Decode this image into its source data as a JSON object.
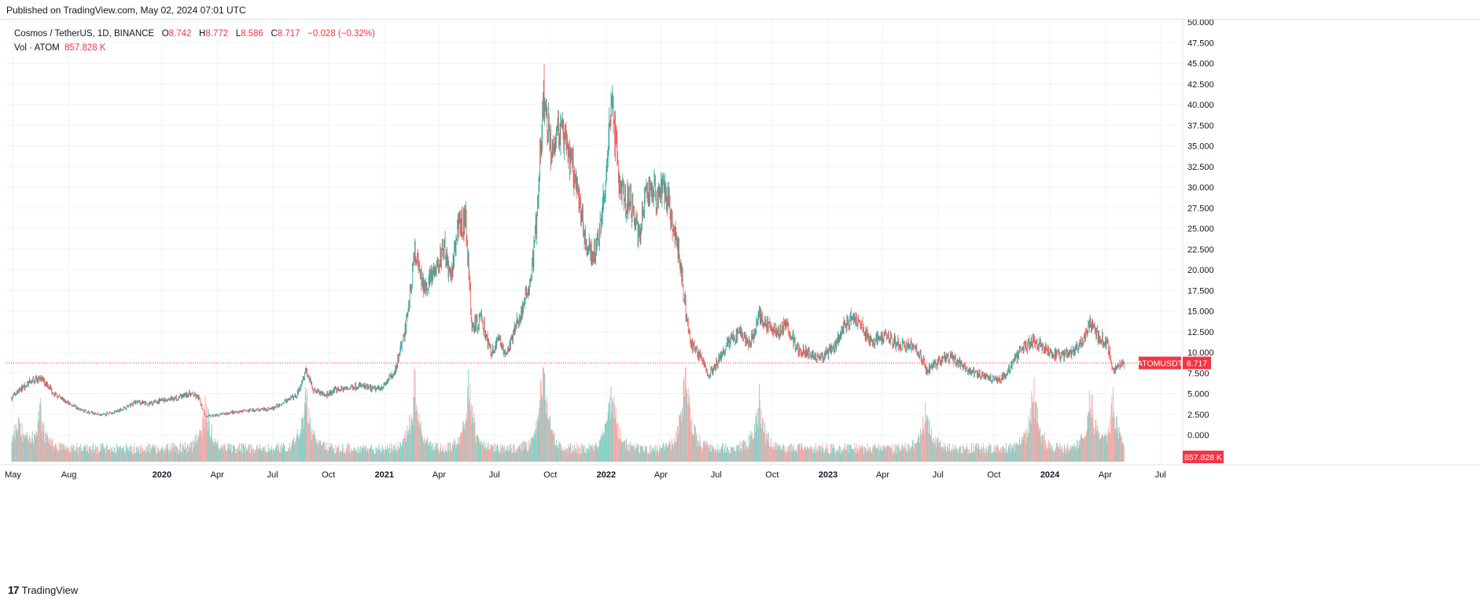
{
  "header": {
    "published": "Published on TradingView.com, May 02, 2024 07:01 UTC"
  },
  "legend": {
    "symbol": "Cosmos / TetherUS, 1D, BINANCE",
    "o_label": "O",
    "o": "8.742",
    "h_label": "H",
    "h": "8.772",
    "l_label": "L",
    "l": "8.586",
    "c_label": "C",
    "c": "8.717",
    "change": "−0.028 (−0.32%)",
    "vol_label": "Vol · ATOM",
    "vol": "857.828 K"
  },
  "price_tag": {
    "symbol": "ATOMUSDT",
    "value": "8.717"
  },
  "volume_tag": "857.828 K",
  "footer": {
    "brand": "TradingView",
    "mark": "17"
  },
  "colors": {
    "up": "#26a69a",
    "down": "#ef5350",
    "up_vol": "#7fcfc5",
    "down_vol": "#f7a8a6",
    "price_line": "#f23645"
  },
  "chart_data": {
    "type": "candlestick",
    "title": "Cosmos / TetherUS, 1D, BINANCE",
    "y_ticks": [
      "50.000",
      "47.500",
      "45.000",
      "42.500",
      "40.000",
      "37.500",
      "35.000",
      "32.500",
      "30.000",
      "27.500",
      "25.000",
      "22.500",
      "20.000",
      "17.500",
      "15.000",
      "12.500",
      "10.000",
      "7.500",
      "5.000",
      "2.500",
      "0.000"
    ],
    "ylim": [
      0,
      50
    ],
    "x_ticks": [
      "May",
      "Aug",
      "2020",
      "Apr",
      "Jul",
      "Oct",
      "2021",
      "Apr",
      "Jul",
      "Oct",
      "2022",
      "Apr",
      "Jul",
      "Oct",
      "2023",
      "Apr",
      "Jul",
      "Oct",
      "2024",
      "Apr",
      "Jul"
    ],
    "x_tick_dates": [
      "2019-05-01",
      "2019-08-01",
      "2020-01-01",
      "2020-04-01",
      "2020-07-01",
      "2020-10-01",
      "2021-01-01",
      "2021-04-01",
      "2021-07-01",
      "2021-10-01",
      "2022-01-01",
      "2022-04-01",
      "2022-07-01",
      "2022-10-01",
      "2023-01-01",
      "2023-04-01",
      "2023-07-01",
      "2023-10-01",
      "2024-01-01",
      "2024-04-01",
      "2024-07-01"
    ],
    "bold_ticks": [
      "2020",
      "2021",
      "2022",
      "2023",
      "2024"
    ],
    "xlim": [
      "2019-04-20",
      "2024-08-04"
    ],
    "last_close": 8.717,
    "price_path": [
      [
        "2019-04-29",
        4.5
      ],
      [
        "2019-05-10",
        5.3
      ],
      [
        "2019-05-25",
        6.2
      ],
      [
        "2019-06-10",
        6.8
      ],
      [
        "2019-06-25",
        6.3
      ],
      [
        "2019-07-10",
        4.8
      ],
      [
        "2019-08-01",
        3.8
      ],
      [
        "2019-08-20",
        3.0
      ],
      [
        "2019-09-10",
        2.6
      ],
      [
        "2019-09-25",
        2.4
      ],
      [
        "2019-10-15",
        2.8
      ],
      [
        "2019-11-05",
        3.4
      ],
      [
        "2019-11-20",
        4.0
      ],
      [
        "2019-12-10",
        3.7
      ],
      [
        "2020-01-01",
        4.2
      ],
      [
        "2020-01-25",
        4.5
      ],
      [
        "2020-02-15",
        5.0
      ],
      [
        "2020-03-01",
        4.5
      ],
      [
        "2020-03-13",
        2.2
      ],
      [
        "2020-04-01",
        2.4
      ],
      [
        "2020-05-01",
        2.8
      ],
      [
        "2020-06-01",
        3.0
      ],
      [
        "2020-07-01",
        3.2
      ],
      [
        "2020-07-20",
        4.0
      ],
      [
        "2020-08-10",
        4.8
      ],
      [
        "2020-08-25",
        8.0
      ],
      [
        "2020-09-05",
        5.5
      ],
      [
        "2020-09-25",
        4.8
      ],
      [
        "2020-10-15",
        5.5
      ],
      [
        "2020-11-01",
        5.6
      ],
      [
        "2020-11-20",
        6.0
      ],
      [
        "2020-12-15",
        5.5
      ],
      [
        "2021-01-01",
        6.0
      ],
      [
        "2021-01-20",
        8.0
      ],
      [
        "2021-02-05",
        13.0
      ],
      [
        "2021-02-20",
        22.0
      ],
      [
        "2021-03-05",
        18.0
      ],
      [
        "2021-03-25",
        19.5
      ],
      [
        "2021-04-10",
        23.0
      ],
      [
        "2021-04-20",
        18.0
      ],
      [
        "2021-05-01",
        25.0
      ],
      [
        "2021-05-15",
        26.0
      ],
      [
        "2021-05-25",
        13.0
      ],
      [
        "2021-06-10",
        14.0
      ],
      [
        "2021-06-25",
        10.0
      ],
      [
        "2021-07-10",
        11.5
      ],
      [
        "2021-07-20",
        9.5
      ],
      [
        "2021-08-05",
        13.0
      ],
      [
        "2021-08-20",
        16.0
      ],
      [
        "2021-09-01",
        20.0
      ],
      [
        "2021-09-10",
        27.0
      ],
      [
        "2021-09-20",
        41.0
      ],
      [
        "2021-10-01",
        35.0
      ],
      [
        "2021-10-15",
        37.0
      ],
      [
        "2021-11-01",
        34.0
      ],
      [
        "2021-11-15",
        29.0
      ],
      [
        "2021-11-28",
        23.0
      ],
      [
        "2021-12-10",
        21.5
      ],
      [
        "2021-12-20",
        24.0
      ],
      [
        "2022-01-01",
        31.0
      ],
      [
        "2022-01-10",
        40.0
      ],
      [
        "2022-01-25",
        29.0
      ],
      [
        "2022-02-10",
        28.0
      ],
      [
        "2022-02-25",
        24.0
      ],
      [
        "2022-03-10",
        30.0
      ],
      [
        "2022-03-25",
        29.0
      ],
      [
        "2022-04-05",
        30.5
      ],
      [
        "2022-04-20",
        26.0
      ],
      [
        "2022-05-01",
        22.0
      ],
      [
        "2022-05-10",
        16.0
      ],
      [
        "2022-05-20",
        11.0
      ],
      [
        "2022-06-05",
        9.5
      ],
      [
        "2022-06-18",
        7.2
      ],
      [
        "2022-07-05",
        9.0
      ],
      [
        "2022-07-20",
        11.0
      ],
      [
        "2022-08-10",
        12.5
      ],
      [
        "2022-08-25",
        11.0
      ],
      [
        "2022-09-10",
        14.5
      ],
      [
        "2022-09-25",
        13.0
      ],
      [
        "2022-10-10",
        12.5
      ],
      [
        "2022-10-25",
        13.5
      ],
      [
        "2022-11-10",
        10.5
      ],
      [
        "2022-11-25",
        10.0
      ],
      [
        "2022-12-20",
        9.3
      ],
      [
        "2023-01-10",
        10.5
      ],
      [
        "2023-01-25",
        13.0
      ],
      [
        "2023-02-10",
        14.5
      ],
      [
        "2023-02-25",
        13.5
      ],
      [
        "2023-03-10",
        11.2
      ],
      [
        "2023-03-25",
        11.5
      ],
      [
        "2023-04-10",
        12.0
      ],
      [
        "2023-04-25",
        11.0
      ],
      [
        "2023-05-15",
        10.8
      ],
      [
        "2023-06-01",
        10.0
      ],
      [
        "2023-06-12",
        7.8
      ],
      [
        "2023-06-25",
        8.5
      ],
      [
        "2023-07-15",
        9.5
      ],
      [
        "2023-08-01",
        9.0
      ],
      [
        "2023-08-20",
        7.8
      ],
      [
        "2023-09-10",
        7.2
      ],
      [
        "2023-09-25",
        6.9
      ],
      [
        "2023-10-10",
        6.7
      ],
      [
        "2023-10-25",
        7.8
      ],
      [
        "2023-11-10",
        9.8
      ],
      [
        "2023-11-25",
        10.8
      ],
      [
        "2023-12-05",
        11.5
      ],
      [
        "2023-12-15",
        11.0
      ],
      [
        "2024-01-01",
        10.0
      ],
      [
        "2024-01-20",
        9.5
      ],
      [
        "2024-02-10",
        10.2
      ],
      [
        "2024-02-25",
        11.5
      ],
      [
        "2024-03-08",
        13.8
      ],
      [
        "2024-03-20",
        12.0
      ],
      [
        "2024-04-05",
        11.0
      ],
      [
        "2024-04-14",
        7.8
      ],
      [
        "2024-04-22",
        8.7
      ],
      [
        "2024-05-02",
        8.717
      ]
    ],
    "volume_spikes": [
      [
        "2019-05-10",
        0.35
      ],
      [
        "2019-06-15",
        0.45
      ],
      [
        "2020-03-13",
        0.55
      ],
      [
        "2020-08-25",
        0.7
      ],
      [
        "2021-02-20",
        0.8
      ],
      [
        "2021-05-20",
        0.75
      ],
      [
        "2021-09-20",
        1.0
      ],
      [
        "2022-01-10",
        0.75
      ],
      [
        "2022-05-12",
        1.0
      ],
      [
        "2022-09-10",
        0.6
      ],
      [
        "2023-06-12",
        0.55
      ],
      [
        "2023-12-05",
        0.75
      ],
      [
        "2024-03-08",
        0.65
      ],
      [
        "2024-04-14",
        0.55
      ]
    ]
  }
}
